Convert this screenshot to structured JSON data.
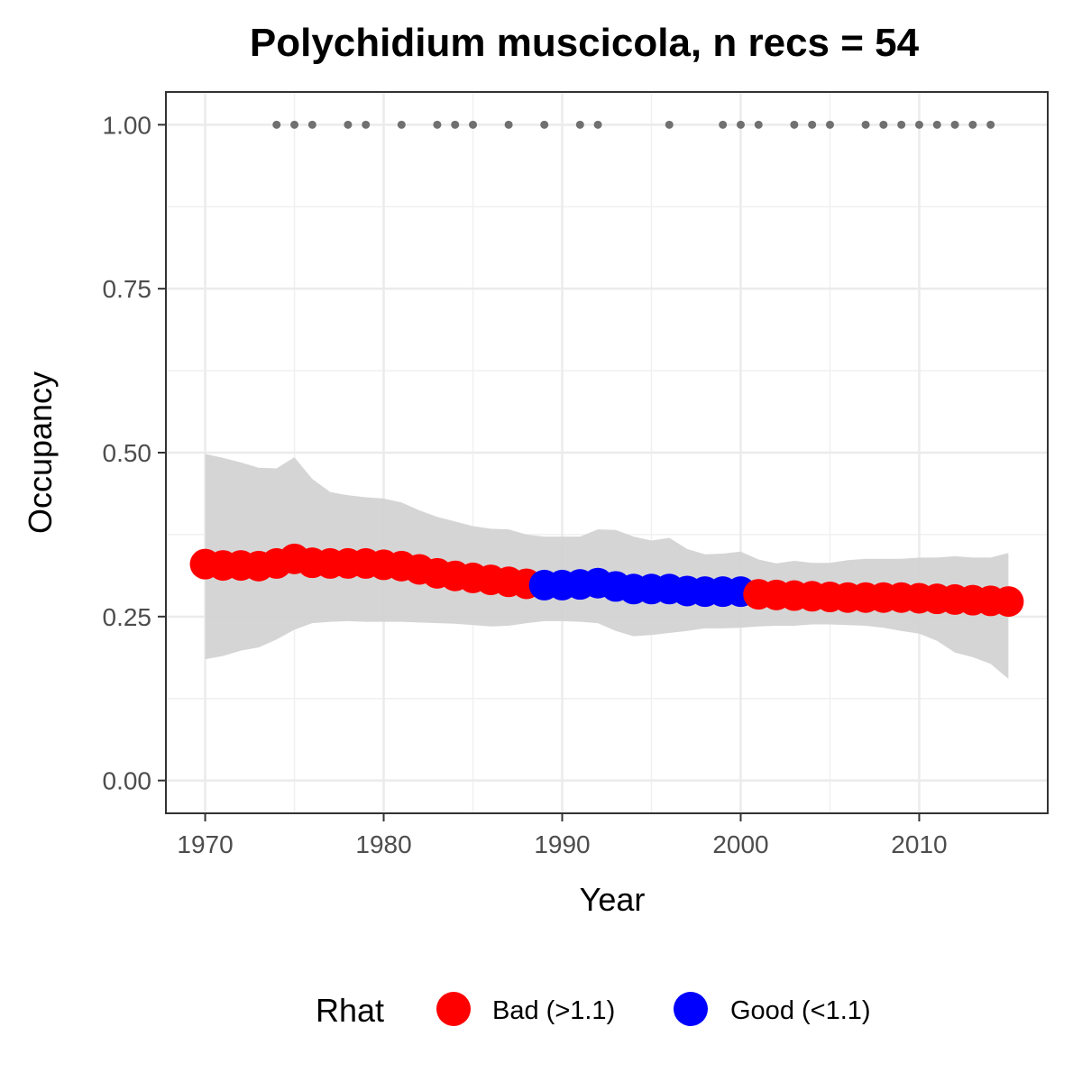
{
  "chart_data": {
    "type": "line",
    "title": "Polychidium muscicola, n recs = 54",
    "xlabel": "Year",
    "ylabel": "Occupancy",
    "xlim": [
      1967.8,
      2017.2
    ],
    "ylim": [
      -0.05,
      1.05
    ],
    "x_ticks": [
      1970,
      1980,
      1990,
      2000,
      2010
    ],
    "x_tick_labels": [
      "1970",
      "1980",
      "1990",
      "2000",
      "2010"
    ],
    "y_ticks": [
      0,
      0.25,
      0.5,
      0.75,
      1.0
    ],
    "y_tick_labels": [
      "0.00",
      "0.25",
      "0.50",
      "0.75",
      "1.00"
    ],
    "grid": true,
    "legend": {
      "title": "Rhat",
      "position": "bottom",
      "entries": [
        {
          "label": "Bad (>1.1)",
          "color": "#ff0000"
        },
        {
          "label": "Good (<1.1)",
          "color": "#0000ff"
        }
      ]
    },
    "colors": {
      "bad": "#ff0000",
      "good": "#0000ff",
      "band": "#d3d3d3",
      "records": "#707070"
    },
    "years": [
      1970,
      1971,
      1972,
      1973,
      1974,
      1975,
      1976,
      1977,
      1978,
      1979,
      1980,
      1981,
      1982,
      1983,
      1984,
      1985,
      1986,
      1987,
      1988,
      1989,
      1990,
      1991,
      1992,
      1993,
      1994,
      1995,
      1996,
      1997,
      1998,
      1999,
      2000,
      2001,
      2002,
      2003,
      2004,
      2005,
      2006,
      2007,
      2008,
      2009,
      2010,
      2011,
      2012,
      2013,
      2014,
      2015
    ],
    "occupancy": [
      0.33,
      0.328,
      0.328,
      0.327,
      0.331,
      0.338,
      0.332,
      0.331,
      0.331,
      0.331,
      0.329,
      0.327,
      0.322,
      0.316,
      0.312,
      0.309,
      0.306,
      0.303,
      0.3,
      0.298,
      0.298,
      0.299,
      0.301,
      0.296,
      0.292,
      0.292,
      0.292,
      0.289,
      0.288,
      0.288,
      0.288,
      0.284,
      0.283,
      0.282,
      0.281,
      0.28,
      0.279,
      0.279,
      0.279,
      0.279,
      0.278,
      0.277,
      0.276,
      0.275,
      0.274,
      0.273
    ],
    "rhat_status": [
      "bad",
      "bad",
      "bad",
      "bad",
      "bad",
      "bad",
      "bad",
      "bad",
      "bad",
      "bad",
      "bad",
      "bad",
      "bad",
      "bad",
      "bad",
      "bad",
      "bad",
      "bad",
      "bad",
      "good",
      "good",
      "good",
      "good",
      "good",
      "good",
      "good",
      "good",
      "good",
      "good",
      "good",
      "good",
      "bad",
      "bad",
      "bad",
      "bad",
      "bad",
      "bad",
      "bad",
      "bad",
      "bad",
      "bad",
      "bad",
      "bad",
      "bad",
      "bad",
      "bad"
    ],
    "lower_95": [
      0.185,
      0.19,
      0.198,
      0.203,
      0.215,
      0.23,
      0.24,
      0.242,
      0.243,
      0.242,
      0.242,
      0.242,
      0.241,
      0.24,
      0.239,
      0.237,
      0.235,
      0.236,
      0.24,
      0.243,
      0.243,
      0.242,
      0.24,
      0.228,
      0.22,
      0.222,
      0.225,
      0.228,
      0.232,
      0.232,
      0.233,
      0.235,
      0.236,
      0.236,
      0.238,
      0.238,
      0.237,
      0.236,
      0.233,
      0.228,
      0.224,
      0.213,
      0.195,
      0.188,
      0.178,
      0.155
    ],
    "upper_95": [
      0.498,
      0.492,
      0.485,
      0.477,
      0.476,
      0.493,
      0.46,
      0.44,
      0.435,
      0.432,
      0.43,
      0.424,
      0.412,
      0.402,
      0.395,
      0.388,
      0.384,
      0.383,
      0.375,
      0.372,
      0.372,
      0.372,
      0.383,
      0.382,
      0.372,
      0.366,
      0.37,
      0.353,
      0.345,
      0.346,
      0.349,
      0.337,
      0.331,
      0.335,
      0.332,
      0.332,
      0.336,
      0.338,
      0.338,
      0.338,
      0.34,
      0.34,
      0.342,
      0.34,
      0.34,
      0.347
    ],
    "record_years": [
      1974,
      1975,
      1976,
      1978,
      1979,
      1981,
      1983,
      1984,
      1985,
      1987,
      1989,
      1991,
      1992,
      1996,
      1999,
      2000,
      2001,
      2003,
      2004,
      2005,
      2007,
      2008,
      2009,
      2010,
      2011,
      2012,
      2013,
      2014
    ],
    "record_value": 1.0
  }
}
